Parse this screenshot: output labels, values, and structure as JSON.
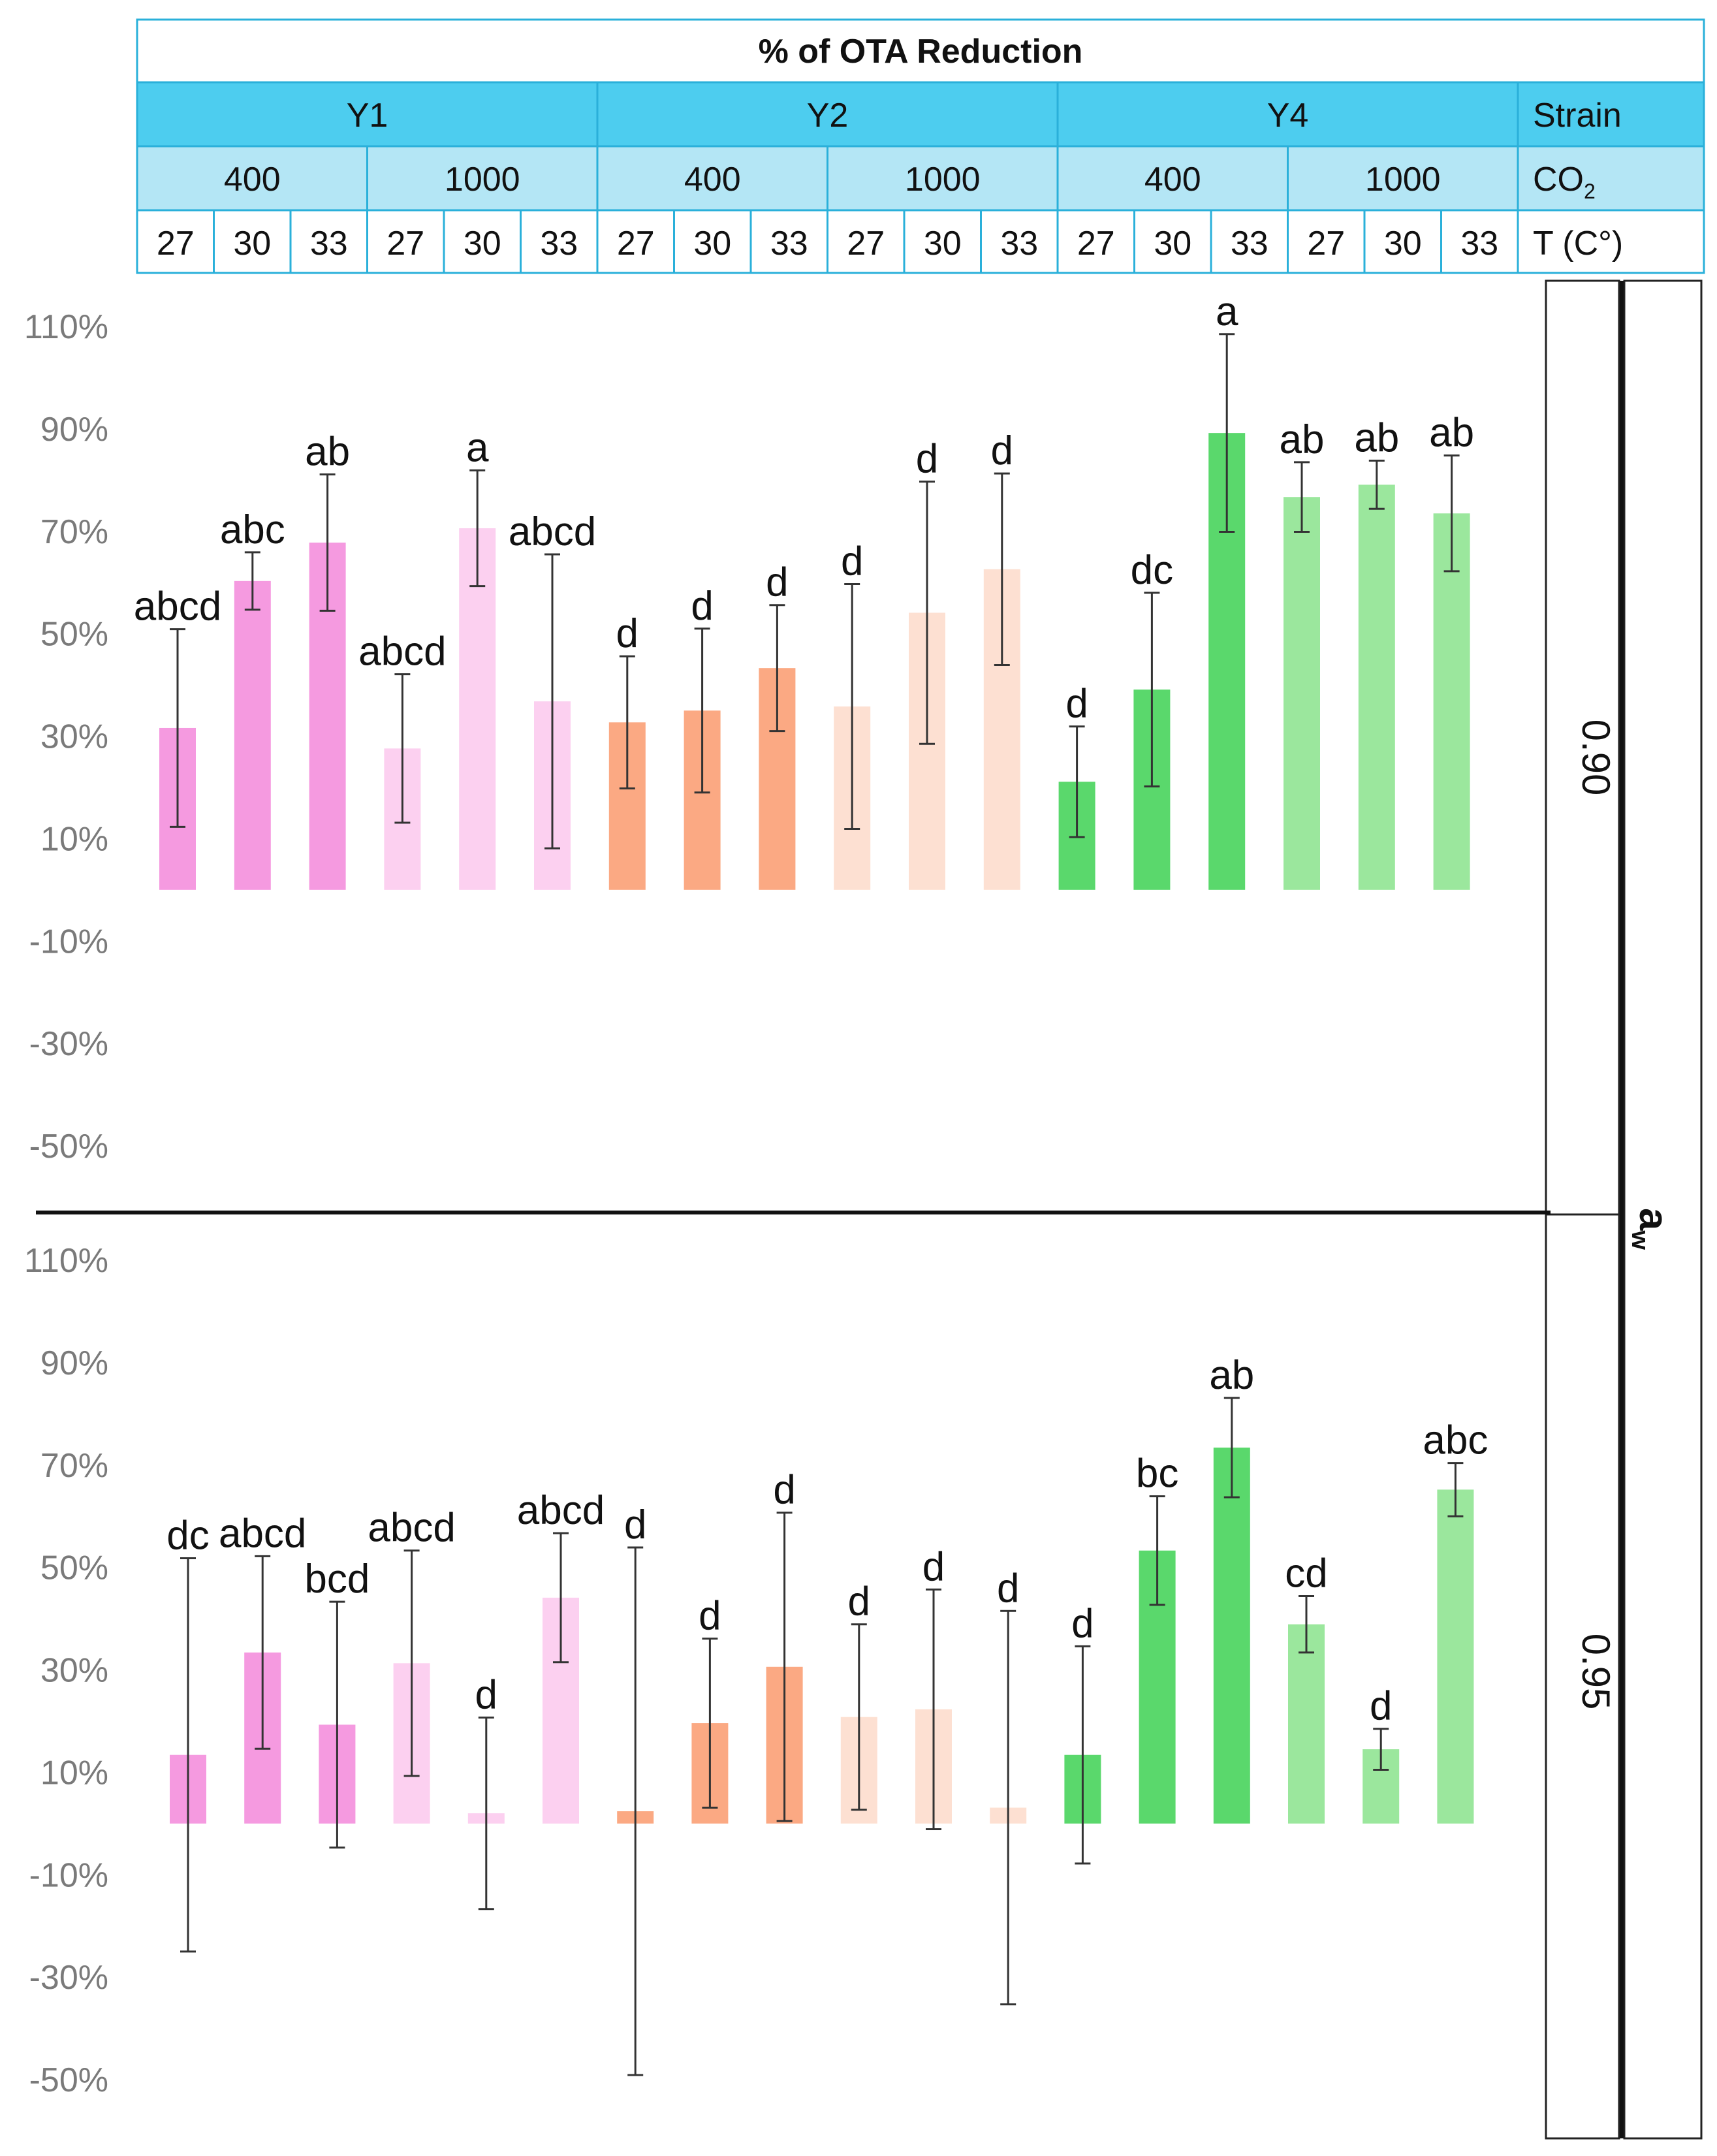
{
  "colors": {
    "Y1_400": "#f59ae0",
    "Y1_1000": "#fcd0f0",
    "Y2_400": "#fba983",
    "Y2_1000": "#fde0d2",
    "Y4_400": "#5ad86c",
    "Y4_1000": "#9be79d",
    "header_dark": "#4dcdef",
    "header_light": "#b4e6f5",
    "header_border": "#2ab0da",
    "error_bar": "#333333"
  },
  "header": {
    "title": "% of OTA Reduction",
    "strain_label": "Strain",
    "co2_label": "CO",
    "co2_sub": "2",
    "temp_label": "T (C°)",
    "strains": [
      "Y1",
      "Y2",
      "Y4"
    ],
    "co2_levels": [
      "400",
      "1000",
      "400",
      "1000",
      "400",
      "1000"
    ],
    "temps": [
      "27",
      "30",
      "33",
      "27",
      "30",
      "33",
      "27",
      "30",
      "33",
      "27",
      "30",
      "33",
      "27",
      "30",
      "33",
      "27",
      "30",
      "33"
    ]
  },
  "aw_panel": {
    "label": "a",
    "label_sub": "w",
    "values": [
      "0.90",
      "0.95"
    ]
  },
  "chart_data": [
    {
      "type": "bar",
      "title": "% of OTA Reduction",
      "aw": "0.90",
      "ylim": [
        -60,
        120
      ],
      "yticks": [
        "110%",
        "90%",
        "70%",
        "50%",
        "30%",
        "10%",
        "-10%",
        "-30%",
        "-50%"
      ],
      "ytick_values": [
        110,
        90,
        70,
        50,
        30,
        10,
        -10,
        -30,
        -50
      ],
      "categories": [
        "Y1 400 27",
        "Y1 400 30",
        "Y1 400 33",
        "Y1 1000 27",
        "Y1 1000 30",
        "Y1 1000 33",
        "Y2 400 27",
        "Y2 400 30",
        "Y2 400 33",
        "Y2 1000 27",
        "Y2 1000 30",
        "Y2 1000 33",
        "Y4 400 27",
        "Y4 400 30",
        "Y4 400 33",
        "Y4 1000 27",
        "Y4 1000 30",
        "Y4 1000 33"
      ],
      "values": [
        31.6,
        60.3,
        67.8,
        27.6,
        70.6,
        36.8,
        32.7,
        35.0,
        43.3,
        35.8,
        54.1,
        62.6,
        21.1,
        39.1,
        89.2,
        76.7,
        79.1,
        73.5
      ],
      "errors": [
        19.3,
        5.6,
        13.3,
        14.5,
        11.3,
        28.7,
        12.9,
        16.0,
        12.3,
        23.9,
        25.6,
        18.7,
        10.8,
        18.9,
        19.3,
        6.8,
        4.7,
        11.3
      ],
      "letters": [
        "abcd",
        "abc",
        "ab",
        "abcd",
        "a",
        "abcd",
        "d",
        "d",
        "d",
        "d",
        "d",
        "d",
        "d",
        "dc",
        "a",
        "ab",
        "ab",
        "ab"
      ]
    },
    {
      "type": "bar",
      "title": "% of OTA Reduction",
      "aw": "0.95",
      "ylim": [
        -60,
        120
      ],
      "yticks": [
        "110%",
        "90%",
        "70%",
        "50%",
        "30%",
        "10%",
        "-10%",
        "-30%",
        "-50%"
      ],
      "ytick_values": [
        110,
        90,
        70,
        50,
        30,
        10,
        -10,
        -30,
        -50
      ],
      "categories": [
        "Y1 400 27",
        "Y1 400 30",
        "Y1 400 33",
        "Y1 1000 27",
        "Y1 1000 30",
        "Y1 1000 33",
        "Y2 400 27",
        "Y2 400 30",
        "Y2 400 33",
        "Y2 1000 27",
        "Y2 1000 30",
        "Y2 1000 33",
        "Y4 400 27",
        "Y4 400 30",
        "Y4 400 33",
        "Y4 1000 27",
        "Y4 1000 30",
        "Y4 1000 33"
      ],
      "values": [
        13.4,
        33.4,
        19.3,
        31.3,
        2.0,
        44.1,
        2.4,
        19.6,
        30.6,
        20.8,
        22.3,
        3.1,
        13.4,
        53.3,
        73.4,
        38.9,
        14.5,
        65.2
      ],
      "errors": [
        38.4,
        18.8,
        24.0,
        22.0,
        18.7,
        12.6,
        51.5,
        16.5,
        30.1,
        18.1,
        23.4,
        38.4,
        21.2,
        10.6,
        9.7,
        5.5,
        4.0,
        5.2
      ],
      "letters": [
        "dc",
        "abcd",
        "bcd",
        "abcd",
        "d",
        "abcd",
        "d",
        "d",
        "d",
        "d",
        "d",
        "d",
        "d",
        "bc",
        "ab",
        "cd",
        "d",
        "abc"
      ]
    }
  ]
}
